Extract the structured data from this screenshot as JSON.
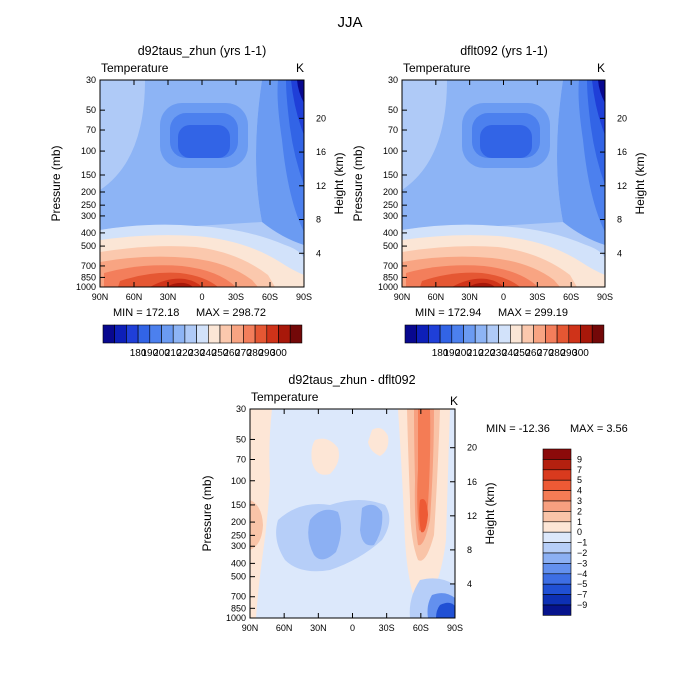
{
  "page_title": "JJA",
  "chart_data": [
    {
      "type": "heatmap",
      "title": "d92taus_zhun (yrs 1-1)",
      "subtitle_left": "Temperature",
      "subtitle_right": "K",
      "ylabel": "Pressure (mb)",
      "ylabel_right": "Height (km)",
      "x_ticks": [
        "90N",
        "60N",
        "30N",
        "0",
        "30S",
        "60S",
        "90S"
      ],
      "y_ticks": [
        "30",
        "50",
        "70",
        "100",
        "150",
        "200",
        "250",
        "300",
        "400",
        "500",
        "700",
        "850",
        "1000"
      ],
      "height_ticks": [
        "20",
        "16",
        "12",
        "8",
        "4"
      ],
      "min_label": "MIN = 172.18",
      "max_label": "MAX = 298.72",
      "colorbar_labels": [
        "180",
        "190",
        "200",
        "210",
        "220",
        "230",
        "240",
        "250",
        "260",
        "270",
        "280",
        "290",
        "300"
      ],
      "colors": [
        "#08088f",
        "#0d1fb8",
        "#1f3fd8",
        "#3264e6",
        "#4c80ee",
        "#6b9bf2",
        "#8db4f5",
        "#afcaf7",
        "#d2e2fa",
        "#fbe6d6",
        "#fbc8ad",
        "#f8a482",
        "#f37e5b",
        "#e55733",
        "#cf3319",
        "#a8180a",
        "#730808"
      ]
    },
    {
      "type": "heatmap",
      "title": "dflt092 (yrs 1-1)",
      "subtitle_left": "Temperature",
      "subtitle_right": "K",
      "ylabel": "Pressure (mb)",
      "ylabel_right": "Height (km)",
      "x_ticks": [
        "90N",
        "60N",
        "30N",
        "0",
        "30S",
        "60S",
        "90S"
      ],
      "y_ticks": [
        "30",
        "50",
        "70",
        "100",
        "150",
        "200",
        "250",
        "300",
        "400",
        "500",
        "700",
        "850",
        "1000"
      ],
      "height_ticks": [
        "20",
        "16",
        "12",
        "8",
        "4"
      ],
      "min_label": "MIN = 172.94",
      "max_label": "MAX = 299.19",
      "colorbar_labels": [
        "180",
        "190",
        "200",
        "210",
        "220",
        "230",
        "240",
        "250",
        "260",
        "270",
        "280",
        "290",
        "300"
      ]
    },
    {
      "type": "heatmap",
      "title": "d92taus_zhun - dflt092",
      "subtitle_left": "Temperature",
      "subtitle_right": "K",
      "ylabel": "Pressure (mb)",
      "ylabel_right": "Height (km)",
      "x_ticks": [
        "90N",
        "60N",
        "30N",
        "0",
        "30S",
        "60S",
        "90S"
      ],
      "y_ticks": [
        "30",
        "50",
        "70",
        "100",
        "150",
        "200",
        "250",
        "300",
        "400",
        "500",
        "700",
        "850",
        "1000"
      ],
      "height_ticks": [
        "20",
        "16",
        "12",
        "8",
        "4"
      ],
      "min_label": "MIN = -12.36",
      "max_label": "MAX =    3.56",
      "colorbar_labels": [
        "9",
        "7",
        "5",
        "4",
        "3",
        "2",
        "1",
        "0",
        "−1",
        "−2",
        "−3",
        "−4",
        "−5",
        "−7",
        "−9"
      ],
      "diff_colors": [
        "#8b0a0a",
        "#b4200f",
        "#d93a1e",
        "#ed5a35",
        "#f47c55",
        "#f7a080",
        "#f9c4a8",
        "#fde6d6",
        "#dce8fb",
        "#b6cef8",
        "#8cb0f3",
        "#6390ee",
        "#3d6ee4",
        "#2050d4",
        "#0d30b4",
        "#06138c"
      ]
    }
  ]
}
